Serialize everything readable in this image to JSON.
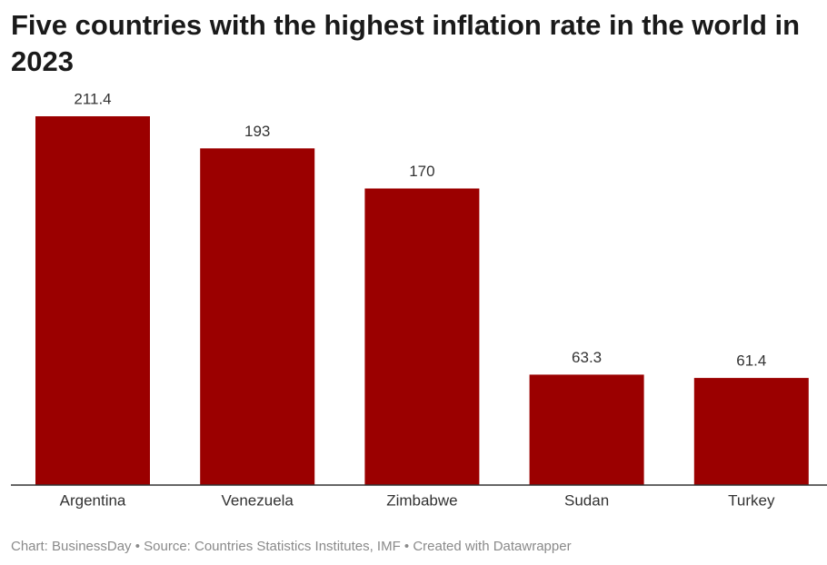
{
  "chart_data": {
    "type": "bar",
    "title": "Five countries with the highest inflation rate in the world in 2023",
    "categories": [
      "Argentina",
      "Venezuela",
      "Zimbabwe",
      "Sudan",
      "Turkey"
    ],
    "values": [
      211.4,
      193,
      170,
      63.3,
      61.4
    ],
    "color": "#9b0000",
    "ylim": [
      0,
      211.4
    ],
    "source": "Chart: BusinessDay • Source: Countries Statistics Institutes, IMF • Created with Datawrapper"
  }
}
